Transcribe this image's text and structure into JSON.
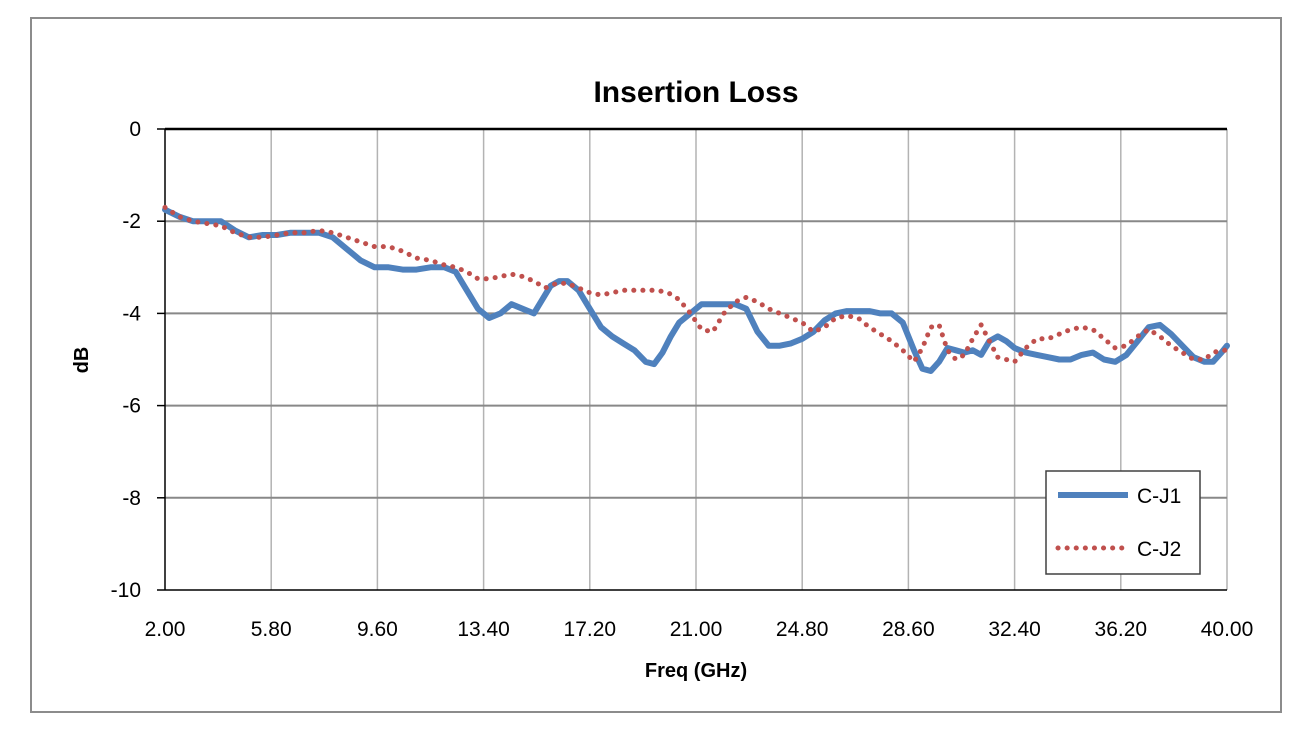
{
  "chart_data": {
    "type": "line",
    "title": "Insertion Loss",
    "xlabel": "Freq (GHz)",
    "ylabel": "dB",
    "xlim": [
      2.0,
      40.0
    ],
    "ylim": [
      -10,
      0
    ],
    "x_ticks": [
      "2.00",
      "5.80",
      "9.60",
      "13.40",
      "17.20",
      "21.00",
      "24.80",
      "28.60",
      "32.40",
      "36.20",
      "40.00"
    ],
    "y_ticks": [
      "0",
      "-2",
      "-4",
      "-6",
      "-8",
      "-10"
    ],
    "grid": true,
    "legend_position": "bottom-right",
    "series": [
      {
        "name": "C-J1",
        "color": "#4f81bd",
        "style": "solid",
        "x": [
          2.0,
          2.5,
          3.0,
          3.5,
          4.0,
          4.5,
          5.0,
          5.5,
          6.0,
          6.5,
          7.0,
          7.5,
          8.0,
          8.5,
          9.0,
          9.5,
          10.0,
          10.5,
          11.0,
          11.5,
          12.0,
          12.4,
          12.8,
          13.2,
          13.6,
          14.0,
          14.4,
          14.8,
          15.2,
          15.5,
          15.8,
          16.1,
          16.4,
          16.8,
          17.2,
          17.6,
          18.0,
          18.4,
          18.8,
          19.2,
          19.5,
          19.8,
          20.1,
          20.4,
          20.8,
          21.2,
          21.6,
          22.0,
          22.4,
          22.8,
          23.2,
          23.6,
          24.0,
          24.4,
          24.8,
          25.2,
          25.6,
          26.0,
          26.4,
          26.8,
          27.2,
          27.6,
          28.0,
          28.4,
          28.8,
          29.1,
          29.4,
          29.7,
          30.0,
          30.3,
          30.6,
          30.9,
          31.2,
          31.5,
          31.8,
          32.1,
          32.4,
          32.8,
          33.2,
          33.6,
          34.0,
          34.4,
          34.8,
          35.2,
          35.6,
          36.0,
          36.4,
          36.8,
          37.2,
          37.6,
          38.0,
          38.4,
          38.8,
          39.2,
          39.5,
          39.8,
          40.0
        ],
        "y": [
          -1.75,
          -1.9,
          -2.0,
          -2.0,
          -2.0,
          -2.2,
          -2.35,
          -2.3,
          -2.3,
          -2.25,
          -2.25,
          -2.25,
          -2.35,
          -2.6,
          -2.85,
          -3.0,
          -3.0,
          -3.05,
          -3.05,
          -3.0,
          -3.0,
          -3.1,
          -3.5,
          -3.9,
          -4.1,
          -4.0,
          -3.8,
          -3.9,
          -4.0,
          -3.7,
          -3.4,
          -3.3,
          -3.3,
          -3.5,
          -3.9,
          -4.3,
          -4.5,
          -4.65,
          -4.8,
          -5.05,
          -5.1,
          -4.85,
          -4.5,
          -4.2,
          -4.0,
          -3.8,
          -3.8,
          -3.8,
          -3.8,
          -3.9,
          -4.4,
          -4.7,
          -4.7,
          -4.65,
          -4.55,
          -4.4,
          -4.15,
          -4.0,
          -3.95,
          -3.95,
          -3.95,
          -4.0,
          -4.0,
          -4.2,
          -4.8,
          -5.2,
          -5.25,
          -5.05,
          -4.75,
          -4.8,
          -4.85,
          -4.8,
          -4.9,
          -4.6,
          -4.5,
          -4.6,
          -4.75,
          -4.85,
          -4.9,
          -4.95,
          -5.0,
          -5.0,
          -4.9,
          -4.85,
          -5.0,
          -5.05,
          -4.9,
          -4.6,
          -4.3,
          -4.25,
          -4.45,
          -4.7,
          -4.95,
          -5.05,
          -5.05,
          -4.85,
          -4.7
        ]
      },
      {
        "name": "C-J2",
        "color": "#c0504d",
        "style": "dotted",
        "x": [
          2.0,
          2.5,
          3.0,
          3.5,
          4.0,
          4.5,
          5.0,
          5.5,
          6.0,
          6.5,
          7.0,
          7.5,
          8.0,
          8.5,
          9.0,
          9.5,
          10.0,
          10.5,
          11.0,
          11.5,
          12.0,
          12.4,
          12.8,
          13.2,
          13.6,
          14.0,
          14.4,
          14.8,
          15.2,
          15.6,
          16.0,
          16.4,
          16.8,
          17.2,
          17.6,
          18.0,
          18.4,
          18.8,
          19.2,
          19.6,
          20.0,
          20.4,
          20.8,
          21.2,
          21.6,
          22.0,
          22.4,
          22.8,
          23.2,
          23.6,
          24.0,
          24.4,
          24.8,
          25.2,
          25.6,
          26.0,
          26.4,
          26.8,
          27.2,
          27.6,
          28.0,
          28.4,
          28.8,
          29.1,
          29.4,
          29.7,
          30.0,
          30.3,
          30.6,
          30.9,
          31.2,
          31.5,
          31.8,
          32.1,
          32.4,
          32.8,
          33.2,
          33.6,
          34.0,
          34.4,
          34.8,
          35.2,
          35.6,
          36.0,
          36.4,
          36.8,
          37.2,
          37.6,
          38.0,
          38.4,
          38.8,
          39.2,
          39.5,
          39.8,
          40.0
        ],
        "y": [
          -1.7,
          -1.9,
          -2.0,
          -2.05,
          -2.1,
          -2.25,
          -2.35,
          -2.35,
          -2.3,
          -2.25,
          -2.25,
          -2.2,
          -2.25,
          -2.35,
          -2.45,
          -2.55,
          -2.55,
          -2.65,
          -2.8,
          -2.85,
          -2.95,
          -3.0,
          -3.1,
          -3.25,
          -3.25,
          -3.2,
          -3.15,
          -3.2,
          -3.3,
          -3.45,
          -3.35,
          -3.35,
          -3.45,
          -3.55,
          -3.6,
          -3.55,
          -3.5,
          -3.5,
          -3.5,
          -3.5,
          -3.55,
          -3.7,
          -4.0,
          -4.35,
          -4.4,
          -4.0,
          -3.75,
          -3.65,
          -3.75,
          -3.9,
          -4.0,
          -4.1,
          -4.2,
          -4.4,
          -4.3,
          -4.1,
          -4.05,
          -4.1,
          -4.3,
          -4.45,
          -4.6,
          -4.8,
          -5.05,
          -4.75,
          -4.3,
          -4.25,
          -4.8,
          -5.0,
          -4.9,
          -4.55,
          -4.25,
          -4.6,
          -4.95,
          -5.0,
          -5.05,
          -4.75,
          -4.55,
          -4.55,
          -4.45,
          -4.35,
          -4.3,
          -4.35,
          -4.55,
          -4.75,
          -4.7,
          -4.5,
          -4.35,
          -4.5,
          -4.7,
          -4.85,
          -5.0,
          -5.0,
          -4.85,
          -4.8,
          -4.8
        ]
      }
    ]
  }
}
